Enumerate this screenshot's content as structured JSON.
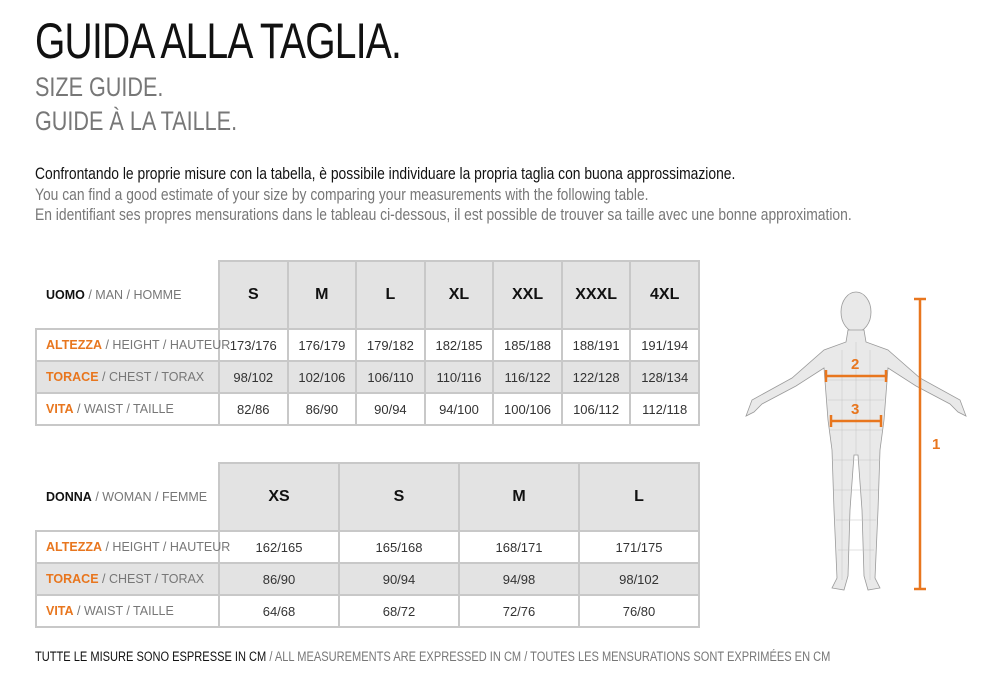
{
  "title": "GUIDA ALLA TAGLIA.",
  "subtitle_en": "SIZE GUIDE.",
  "subtitle_fr": "GUIDE À LA TAILLE.",
  "intro": {
    "it": "Confrontando le proprie misure con la tabella, è possibile individuare la propria taglia con buona approssimazione.",
    "en": "You can find a good estimate of your size by comparing your measurements with the following table.",
    "fr": "En identifiant ses propres mensurations dans le tableau ci-dessous, il est possible de trouver sa taille avec une bonne approximation."
  },
  "accent_color": "#e8761e",
  "men": {
    "label_it": "UOMO",
    "label_rest": " / MAN / HOMME",
    "sizes": [
      "S",
      "M",
      "L",
      "XL",
      "XXL",
      "XXXL",
      "4XL"
    ],
    "rows": [
      {
        "label_it": "ALTEZZA",
        "label_rest": " / HEIGHT / HAUTEUR",
        "values": [
          "173/176",
          "176/179",
          "179/182",
          "182/185",
          "185/188",
          "188/191",
          "191/194"
        ]
      },
      {
        "label_it": "TORACE",
        "label_rest": " / CHEST / TORAX",
        "values": [
          "98/102",
          "102/106",
          "106/110",
          "110/116",
          "116/122",
          "122/128",
          "128/134"
        ]
      },
      {
        "label_it": "VITA",
        "label_rest": " / WAIST / TAILLE",
        "values": [
          "82/86",
          "86/90",
          "90/94",
          "94/100",
          "100/106",
          "106/112",
          "112/118"
        ]
      }
    ]
  },
  "women": {
    "label_it": "DONNA",
    "label_rest": " / WOMAN / FEMME",
    "sizes": [
      "XS",
      "S",
      "M",
      "L"
    ],
    "rows": [
      {
        "label_it": "ALTEZZA",
        "label_rest": " / HEIGHT / HAUTEUR",
        "values": [
          "162/165",
          "165/168",
          "168/171",
          "171/175"
        ]
      },
      {
        "label_it": "TORACE",
        "label_rest": " / CHEST / TORAX",
        "values": [
          "86/90",
          "90/94",
          "94/98",
          "98/102"
        ]
      },
      {
        "label_it": "VITA",
        "label_rest": " / WAIST / TAILLE",
        "values": [
          "64/68",
          "68/72",
          "72/76",
          "76/80"
        ]
      }
    ]
  },
  "figure": {
    "markers": [
      "1",
      "2",
      "3"
    ]
  },
  "footer": {
    "it": "TUTTE LE MISURE SONO ESPRESSE IN CM",
    "rest": " / ALL MEASUREMENTS ARE EXPRESSED IN CM / TOUTES LES MENSURATIONS SONT EXPRIMÉES EN CM"
  }
}
